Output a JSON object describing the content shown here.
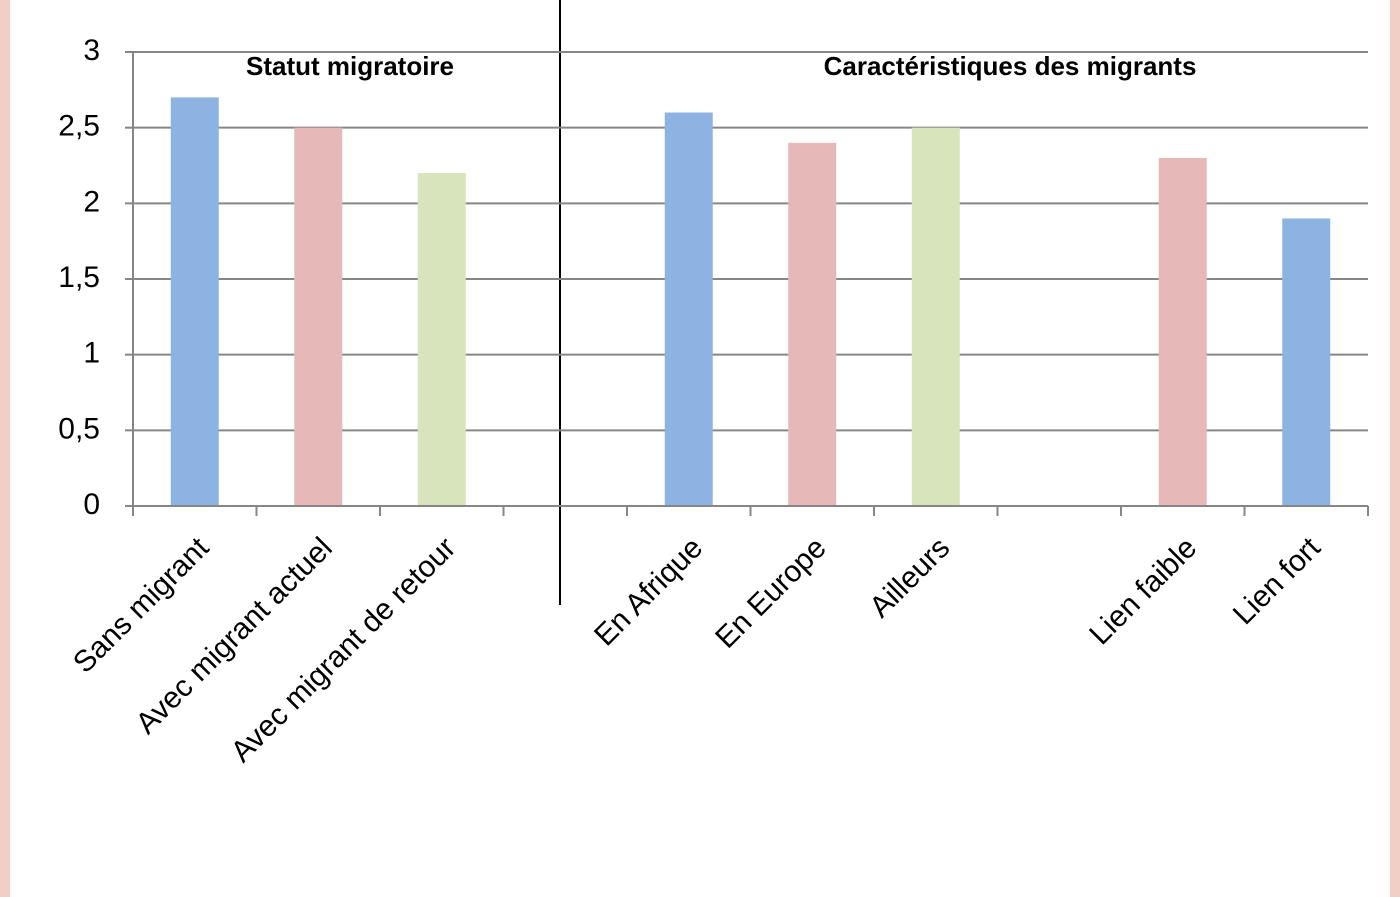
{
  "chart_data": {
    "type": "bar",
    "annotations": [
      "Statut migratoire",
      "Caractéristiques des migrants"
    ],
    "categories": [
      "Sans migrant",
      "Avec migrant actuel",
      "Avec migrant de retour",
      null,
      "En Afrique",
      "En Europe",
      "Ailleurs",
      null,
      "Lien faible",
      "Lien fort"
    ],
    "values": [
      2.7,
      2.5,
      2.2,
      null,
      2.6,
      2.4,
      2.5,
      null,
      2.3,
      1.9
    ],
    "colors": [
      "#8db3e2",
      "#e6b8b7",
      "#d7e4bc",
      null,
      "#8db3e2",
      "#e6b8b7",
      "#d7e4bc",
      null,
      "#e6b8b7",
      "#8db3e2"
    ],
    "ylim": [
      0,
      3
    ],
    "yticks": [
      0,
      {
        "value": 0.5,
        "label": "0,5"
      },
      1,
      {
        "value": 1.5,
        "label": "1,5"
      },
      2,
      {
        "value": 2.5,
        "label": "2,5"
      },
      3
    ],
    "grid": true
  }
}
